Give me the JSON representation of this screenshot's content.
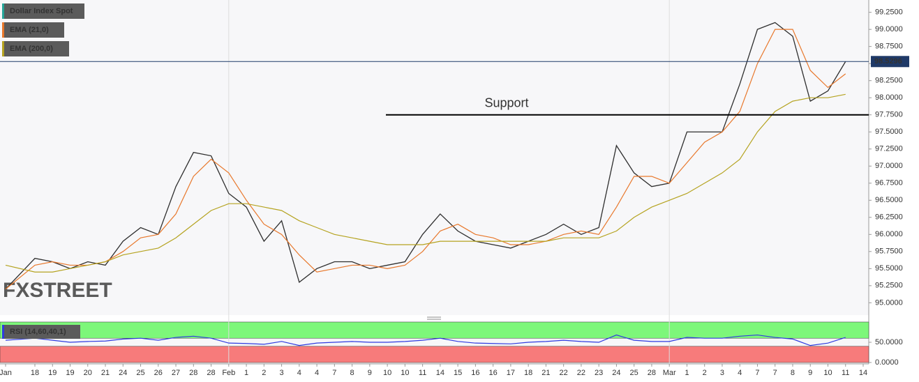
{
  "chart_data": [
    {
      "type": "line",
      "watermark": "FXSTREET",
      "categories": [
        "Jan",
        "18",
        "19",
        "19",
        "20",
        "21",
        "24",
        "25",
        "26",
        "27",
        "28",
        "28",
        "Feb",
        "1",
        "2",
        "3",
        "4",
        "4",
        "7",
        "8",
        "9",
        "10",
        "10",
        "11",
        "14",
        "15",
        "16",
        "16",
        "17",
        "18",
        "21",
        "22",
        "22",
        "23",
        "24",
        "25",
        "28",
        "Mar",
        "1",
        "2",
        "3",
        "4",
        "7",
        "7",
        "8",
        "9",
        "10",
        "11",
        "14"
      ],
      "series": [
        {
          "name": "Dollar Index Spot",
          "color": "#2e2e2e",
          "values": [
            95.2,
            95.65,
            95.6,
            95.5,
            95.6,
            95.55,
            95.9,
            96.1,
            96.0,
            96.7,
            97.2,
            97.15,
            96.6,
            96.4,
            95.9,
            96.2,
            95.3,
            95.5,
            95.6,
            95.6,
            95.5,
            95.55,
            95.6,
            96.0,
            96.3,
            96.05,
            95.9,
            95.85,
            95.8,
            95.9,
            96.0,
            96.15,
            96.0,
            96.1,
            97.3,
            96.9,
            96.7,
            96.75,
            97.5,
            97.5,
            97.5,
            98.2,
            99.0,
            99.1,
            98.9,
            97.95,
            98.1,
            98.53,
            null
          ]
        },
        {
          "name": "EMA (21,0)",
          "color": "#e8782c",
          "values": [
            95.2,
            95.55,
            95.6,
            95.55,
            95.55,
            95.6,
            95.75,
            95.95,
            96.0,
            96.3,
            96.85,
            97.1,
            96.9,
            96.5,
            96.15,
            96.0,
            95.7,
            95.45,
            95.5,
            95.55,
            95.55,
            95.5,
            95.55,
            95.75,
            96.05,
            96.15,
            96.0,
            95.95,
            95.85,
            95.85,
            95.9,
            96.0,
            96.05,
            96.0,
            96.4,
            96.85,
            96.85,
            96.75,
            97.05,
            97.35,
            97.5,
            97.8,
            98.5,
            99.0,
            99.0,
            98.4,
            98.15,
            98.35,
            null
          ]
        },
        {
          "name": "EMA (200,0)",
          "color": "#b5a320",
          "values": [
            95.55,
            95.45,
            95.45,
            95.5,
            95.55,
            95.6,
            95.7,
            95.75,
            95.8,
            95.95,
            96.15,
            96.35,
            96.45,
            96.45,
            96.4,
            96.35,
            96.2,
            96.1,
            96.0,
            95.95,
            95.9,
            95.85,
            95.85,
            95.85,
            95.9,
            95.9,
            95.9,
            95.9,
            95.9,
            95.9,
            95.9,
            95.95,
            95.95,
            95.95,
            96.05,
            96.25,
            96.4,
            96.5,
            96.6,
            96.75,
            96.9,
            97.1,
            97.5,
            97.8,
            97.95,
            98.0,
            98.0,
            98.05,
            null
          ]
        }
      ],
      "ylim": [
        94.82,
        99.43
      ],
      "yticks": [
        {
          "value": 95,
          "label": "95.0000"
        },
        {
          "value": 95.25,
          "label": "95.2500"
        },
        {
          "value": 95.5,
          "label": "95.5000"
        },
        {
          "value": 95.75,
          "label": "95.7500"
        },
        {
          "value": 96,
          "label": "96.0000"
        },
        {
          "value": 96.25,
          "label": "96.2500"
        },
        {
          "value": 96.5,
          "label": "96.5000"
        },
        {
          "value": 96.75,
          "label": "96.7500"
        },
        {
          "value": 97,
          "label": "97.0000"
        },
        {
          "value": 97.25,
          "label": "97.2500"
        },
        {
          "value": 97.5,
          "label": "97.5000"
        },
        {
          "value": 97.75,
          "label": "97.7500"
        },
        {
          "value": 98,
          "label": "98.0000"
        },
        {
          "value": 98.25,
          "label": "98.2500"
        },
        {
          "value": 98.5,
          "label": "98.5000"
        },
        {
          "value": 98.75,
          "label": "98.7500"
        },
        {
          "value": 99,
          "label": "99.0000"
        },
        {
          "value": 99.25,
          "label": "99.2500"
        }
      ],
      "last_price": 98.5296,
      "annotations": [
        {
          "text": "Support",
          "value": 97.75
        }
      ]
    },
    {
      "type": "line",
      "series": [
        {
          "name": "RSI (14,60,40,1)",
          "color": "#2f3be0",
          "values": [
            55,
            60,
            55,
            50,
            52,
            53,
            58,
            60,
            55,
            62,
            65,
            60,
            48,
            47,
            45,
            52,
            42,
            48,
            50,
            52,
            50,
            50,
            52,
            55,
            60,
            52,
            48,
            47,
            46,
            50,
            52,
            55,
            52,
            50,
            68,
            55,
            52,
            52,
            62,
            60,
            60,
            65,
            68,
            62,
            58,
            42,
            48,
            62,
            null
          ]
        }
      ],
      "ylim": [
        0,
        100
      ],
      "yticks": [
        {
          "value": 0,
          "label": "0.0000"
        },
        {
          "value": 50,
          "label": "50.0000"
        }
      ],
      "bands": [
        {
          "from": 60,
          "to": 100,
          "color": "#7df77a"
        },
        {
          "from": 0,
          "to": 40,
          "color": "#f77b7b"
        }
      ]
    }
  ]
}
